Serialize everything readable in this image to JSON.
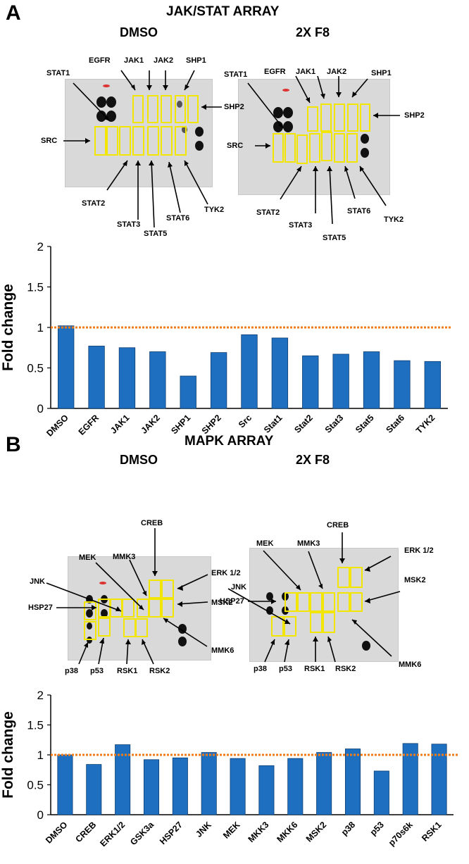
{
  "panel_a": {
    "letter": "A",
    "title": "JAK/STAT ARRAY",
    "conditions": [
      "DMSO",
      "2X F8"
    ],
    "blot_labels": {
      "STAT1": "STAT1",
      "EGFR": "EGFR",
      "JAK1": "JAK1",
      "JAK2": "JAK2",
      "SHP1": "SHP1",
      "SHP2": "SHP2",
      "SRC": "SRC",
      "STAT2": "STAT2",
      "STAT3": "STAT3",
      "STAT5": "STAT5",
      "STAT6": "STAT6",
      "TYK2": "TYK2"
    }
  },
  "panel_b": {
    "letter": "B",
    "title": "MAPK ARRAY",
    "conditions": [
      "DMSO",
      "2X F8"
    ],
    "blot_labels": {
      "MEK": "MEK",
      "MMK3": "MMK3",
      "CREB": "CREB",
      "JNK": "JNK",
      "ERK12": "ERK 1/2",
      "MSK2": "MSK2",
      "HSP27": "HSP27",
      "p38": "p38",
      "p53": "p53",
      "RSK1": "RSK1",
      "RSK2": "RSK2",
      "MMK6": "MMK6"
    }
  },
  "chart_data": [
    {
      "type": "bar",
      "categories": [
        "DMSO",
        "EGFR",
        "JAK1",
        "JAK2",
        "SHP1",
        "SHP2",
        "Src",
        "Stat1",
        "Stat2",
        "Stat3",
        "Stat5",
        "Stat6",
        "TYK2"
      ],
      "values": [
        1.02,
        0.77,
        0.75,
        0.7,
        0.4,
        0.69,
        0.91,
        0.87,
        0.65,
        0.67,
        0.7,
        0.59,
        0.58
      ],
      "ylabel": "Fold change",
      "ylim": [
        0,
        2
      ],
      "yticks": [
        "0",
        "0.5",
        "1",
        "1.5",
        "2"
      ],
      "reference_line": 1,
      "bar_color": "#1f6fc1",
      "reference_color": "#f07d1a"
    },
    {
      "type": "bar",
      "categories": [
        "DMSO",
        "CREB",
        "ERK1/2",
        "GSK3a",
        "HSP27",
        "JNK",
        "MEK",
        "MKK3",
        "MKK6",
        "MSK2",
        "p38",
        "p53",
        "p70s6k",
        "RSK1"
      ],
      "values": [
        1.0,
        0.84,
        1.17,
        0.92,
        0.95,
        1.04,
        0.94,
        0.82,
        0.94,
        1.04,
        1.1,
        0.73,
        1.19,
        1.18
      ],
      "ylabel": "Fold change",
      "ylim": [
        0,
        2
      ],
      "yticks": [
        "0",
        "0.5",
        "1",
        "1.5",
        "2"
      ],
      "reference_line": 1,
      "bar_color": "#1f6fc1",
      "reference_color": "#f07d1a"
    }
  ]
}
